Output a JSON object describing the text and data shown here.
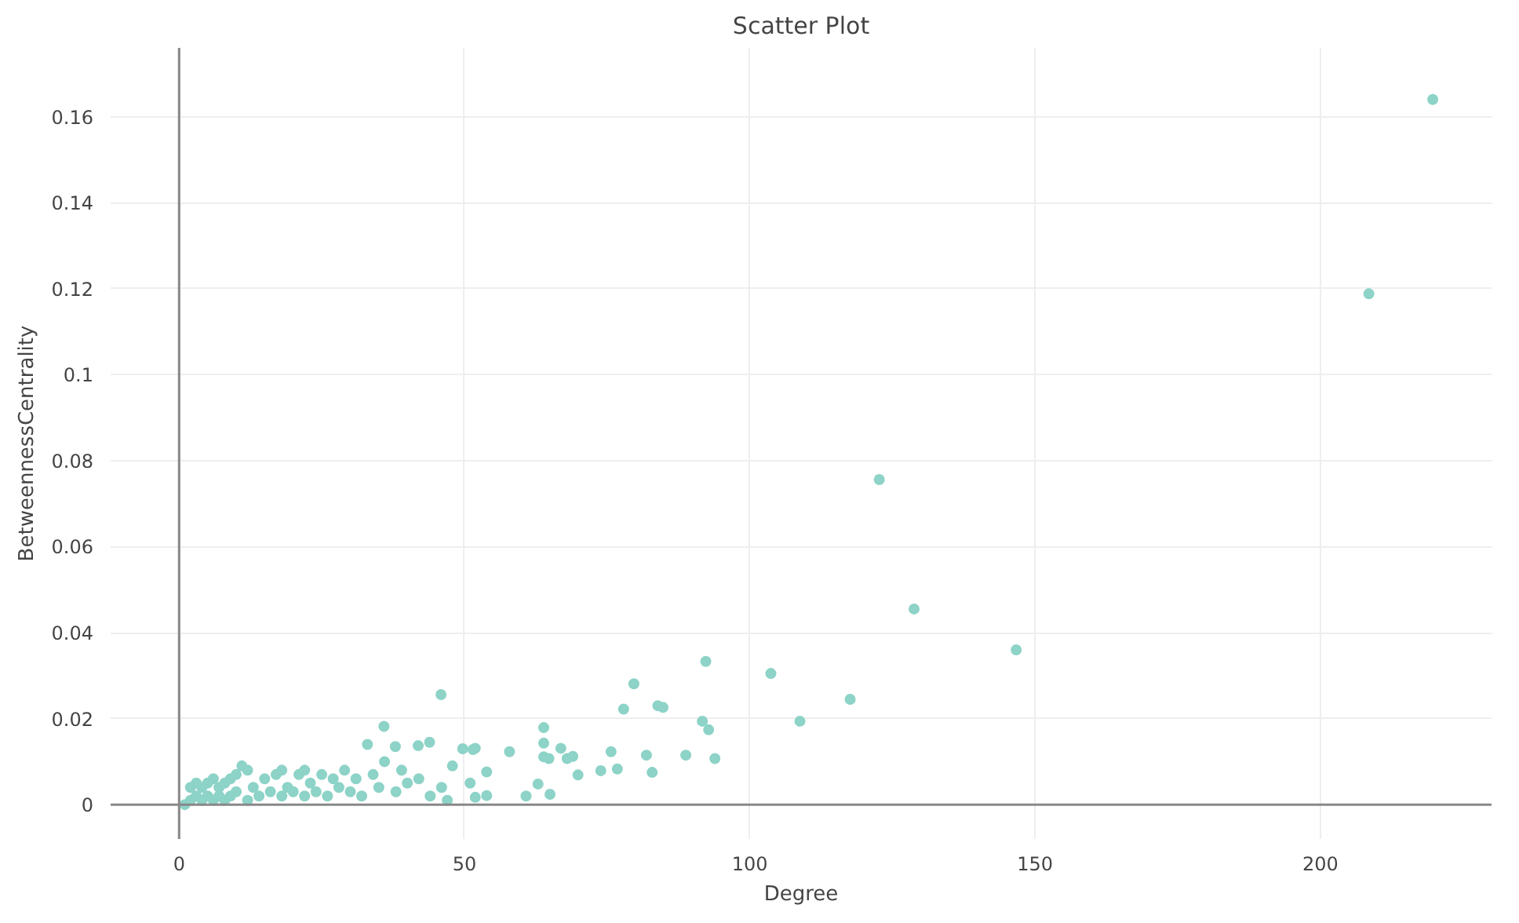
{
  "chart_data": {
    "type": "scatter",
    "title": "Scatter Plot",
    "xlabel": "Degree",
    "ylabel": "BetweennessCentrality",
    "xlim": [
      -12,
      230
    ],
    "ylim": [
      -0.008,
      0.176
    ],
    "xticks": [
      0,
      50,
      100,
      150,
      200
    ],
    "yticks": [
      0,
      0.02,
      0.04,
      0.06,
      0.08,
      0.1,
      0.12,
      0.14,
      0.16
    ],
    "grid": true,
    "marker": "circle",
    "series": [
      {
        "color": "#8dd3c7",
        "x": [
          219.7,
          208.5,
          122.7,
          128.8,
          146.7,
          103.7,
          108.8,
          117.6,
          92.3,
          79.7,
          77.9,
          83.9,
          84.8,
          91.7,
          92.8,
          93.9,
          88.8,
          81.9,
          82.9,
          76.8,
          75.7,
          73.9,
          69.9,
          69.0,
          68.0,
          66.9,
          64.8,
          63.9,
          63.9,
          63.9,
          65.0,
          62.9,
          60.8,
          57.9,
          53.9,
          53.9,
          51.9,
          51.9,
          45.9,
          35.9,
          33.0,
          37.9,
          41.9,
          43.9,
          49.7,
          51.5,
          47.9,
          51.0,
          11,
          1,
          2,
          2,
          3,
          3,
          4,
          4,
          5,
          5,
          6,
          6,
          7,
          7,
          8,
          8,
          9,
          9,
          10,
          10,
          12,
          12,
          13,
          14,
          15,
          16,
          17,
          18,
          18,
          19,
          20,
          21,
          22,
          22,
          23,
          24,
          25,
          26,
          27,
          28,
          29,
          30,
          31,
          32,
          34,
          35,
          36,
          38,
          39,
          40,
          42,
          44,
          46,
          47
        ],
        "values": [
          0.164,
          0.1188,
          0.0756,
          0.0455,
          0.036,
          0.0305,
          0.0194,
          0.0245,
          0.0333,
          0.0281,
          0.0222,
          0.023,
          0.0226,
          0.0194,
          0.0174,
          0.0107,
          0.0115,
          0.0115,
          0.0075,
          0.0083,
          0.0123,
          0.0079,
          0.0069,
          0.0112,
          0.0107,
          0.0131,
          0.0107,
          0.0111,
          0.0143,
          0.0179,
          0.0024,
          0.0048,
          0.002,
          0.0123,
          0.0076,
          0.0021,
          0.0131,
          0.0017,
          0.0256,
          0.0182,
          0.014,
          0.0135,
          0.0137,
          0.0145,
          0.013,
          0.0128,
          0.009,
          0.005,
          0.009,
          0,
          0.001,
          0.004,
          0.002,
          0.005,
          0.001,
          0.004,
          0.002,
          0.005,
          0.001,
          0.006,
          0.002,
          0.004,
          0.001,
          0.005,
          0.002,
          0.006,
          0.003,
          0.007,
          0.001,
          0.008,
          0.004,
          0.002,
          0.006,
          0.003,
          0.007,
          0.002,
          0.008,
          0.004,
          0.003,
          0.007,
          0.002,
          0.008,
          0.005,
          0.003,
          0.007,
          0.002,
          0.006,
          0.004,
          0.008,
          0.003,
          0.006,
          0.002,
          0.007,
          0.004,
          0.01,
          0.003,
          0.008,
          0.005,
          0.006,
          0.002,
          0.004,
          0.001
        ]
      }
    ]
  }
}
